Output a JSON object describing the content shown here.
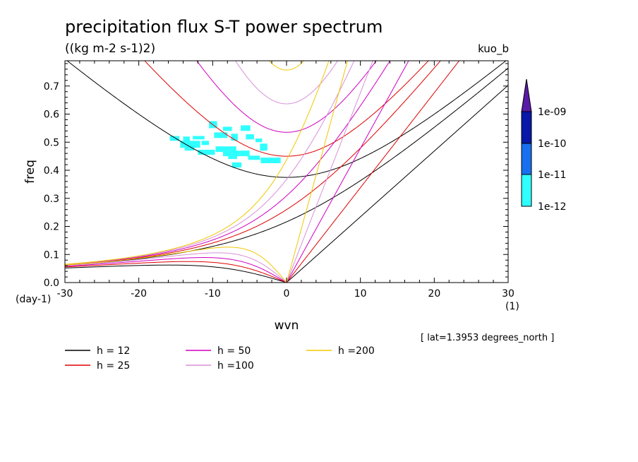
{
  "chart_data": {
    "type": "line",
    "title": "precipitation flux S-T power spectrum",
    "subtitle": "((kg m-2 s-1)2)",
    "dataset_label": "kuo_b",
    "xlabel": "wvn",
    "ylabel": "freq",
    "x_unit": "(1)",
    "y_unit": "(day-1)",
    "xlim": [
      -30,
      30
    ],
    "ylim": [
      0,
      0.79
    ],
    "xticks": [
      -30,
      -20,
      -10,
      0,
      10,
      20,
      30
    ],
    "yticks": [
      0.0,
      0.1,
      0.2,
      0.3,
      0.4,
      0.5,
      0.6,
      0.7
    ],
    "x_tick_labels": [
      "-30",
      "-20",
      "-10",
      "0",
      "10",
      "20",
      "30"
    ],
    "y_tick_labels": [
      "0.0",
      "0.1",
      "0.2",
      "0.3",
      "0.4",
      "0.5",
      "0.6",
      "0.7"
    ],
    "grid": false,
    "annotation": "[ lat=1.3953 degrees_north ]",
    "series": [
      {
        "name": "h = 12",
        "color": "#000000",
        "equivalent_depth": 12
      },
      {
        "name": "h = 25",
        "color": "#e00000",
        "equivalent_depth": 25
      },
      {
        "name": "h = 50",
        "color": "#d000c0",
        "equivalent_depth": 50
      },
      {
        "name": "h =100",
        "color": "#d890d8",
        "equivalent_depth": 100
      },
      {
        "name": "h =200",
        "color": "#f0c800",
        "equivalent_depth": 200
      }
    ],
    "legend_position": "bottom",
    "colorbar": {
      "labels": [
        "1e-09",
        "1e-10",
        "1e-11",
        "1e-12"
      ],
      "colors": [
        "#5a1aa8",
        "#0818a8",
        "#1870f0",
        "#30ffff"
      ]
    },
    "spectrum_patches": [
      {
        "x": -13.8,
        "y": 0.47,
        "w": 1.3,
        "h": 0.022
      },
      {
        "x": -11.5,
        "y": 0.49,
        "w": 1.0,
        "h": 0.015
      },
      {
        "x": -10.5,
        "y": 0.55,
        "w": 1.1,
        "h": 0.025
      },
      {
        "x": -8.6,
        "y": 0.54,
        "w": 1.2,
        "h": 0.015
      },
      {
        "x": -6.2,
        "y": 0.54,
        "w": 1.3,
        "h": 0.02
      },
      {
        "x": -15.8,
        "y": 0.505,
        "w": 1.3,
        "h": 0.017
      },
      {
        "x": -14.0,
        "y": 0.5,
        "w": 0.9,
        "h": 0.02
      },
      {
        "x": -12.7,
        "y": 0.51,
        "w": 1.6,
        "h": 0.012
      },
      {
        "x": -9.8,
        "y": 0.515,
        "w": 1.8,
        "h": 0.02
      },
      {
        "x": -7.5,
        "y": 0.505,
        "w": 0.9,
        "h": 0.025
      },
      {
        "x": -5.5,
        "y": 0.51,
        "w": 1.1,
        "h": 0.018
      },
      {
        "x": -4.2,
        "y": 0.5,
        "w": 0.9,
        "h": 0.013
      },
      {
        "x": -14.4,
        "y": 0.48,
        "w": 2.7,
        "h": 0.025
      },
      {
        "x": -9.6,
        "y": 0.465,
        "w": 2.8,
        "h": 0.02
      },
      {
        "x": -3.6,
        "y": 0.47,
        "w": 1.0,
        "h": 0.025
      },
      {
        "x": -12.0,
        "y": 0.455,
        "w": 2.3,
        "h": 0.018
      },
      {
        "x": -8.6,
        "y": 0.45,
        "w": 3.6,
        "h": 0.02
      },
      {
        "x": -7.9,
        "y": 0.44,
        "w": 1.2,
        "h": 0.012
      },
      {
        "x": -5.2,
        "y": 0.437,
        "w": 1.6,
        "h": 0.015
      },
      {
        "x": -3.5,
        "y": 0.425,
        "w": 2.7,
        "h": 0.02
      },
      {
        "x": -7.4,
        "y": 0.41,
        "w": 1.3,
        "h": 0.018
      }
    ]
  },
  "legend_entries": [
    {
      "label": "h = 12",
      "color": "#000000"
    },
    {
      "label": "h = 25",
      "color": "#e00000"
    },
    {
      "label": "h = 50",
      "color": "#d000c0"
    },
    {
      "label": "h =100",
      "color": "#d890d8"
    },
    {
      "label": "h =200",
      "color": "#f0c800"
    }
  ]
}
